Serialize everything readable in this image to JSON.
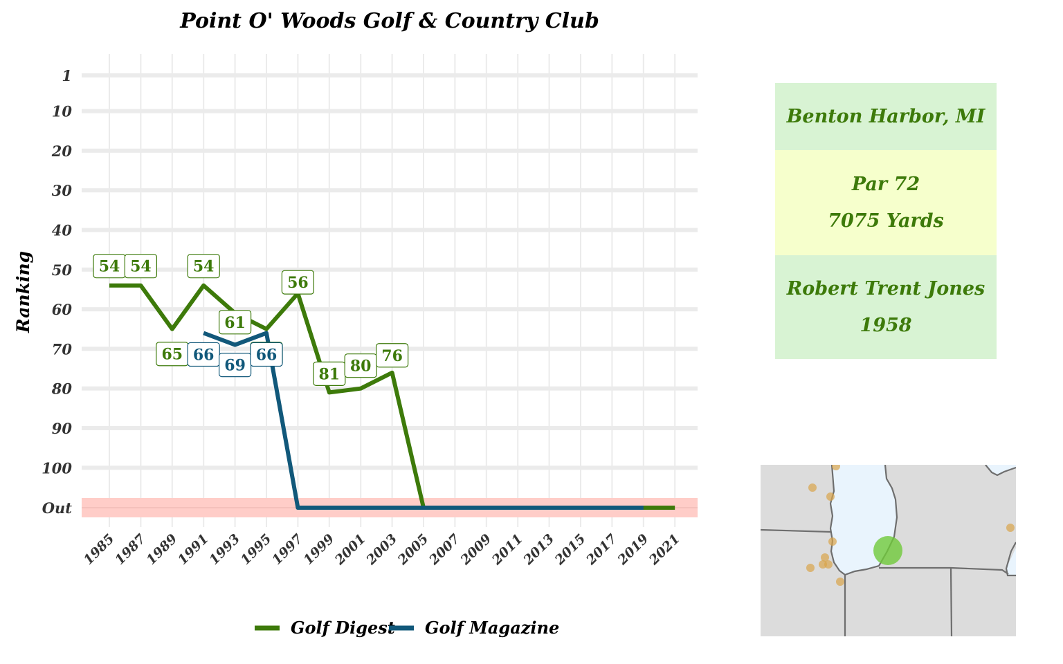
{
  "chart_data": {
    "type": "line",
    "title": "Point O' Woods Golf & Country Club",
    "xlabel": "",
    "ylabel": "Ranking",
    "x_ticks": [
      "1985",
      "1987",
      "1989",
      "1991",
      "1993",
      "1995",
      "1997",
      "1999",
      "2001",
      "2003",
      "2005",
      "2007",
      "2009",
      "2011",
      "2013",
      "2015",
      "2017",
      "2019",
      "2021"
    ],
    "y_ticks": [
      "1",
      "10",
      "20",
      "30",
      "40",
      "50",
      "60",
      "70",
      "80",
      "90",
      "100",
      "Out"
    ],
    "y_reversed": true,
    "out_band_label": "Out",
    "grid": true,
    "legend_position": "bottom",
    "series": [
      {
        "name": "Golf Digest",
        "color": "#3d7a0a",
        "points": [
          {
            "x": 1985,
            "y": 54
          },
          {
            "x": 1987,
            "y": 54
          },
          {
            "x": 1989,
            "y": 65
          },
          {
            "x": 1991,
            "y": 54
          },
          {
            "x": 1993,
            "y": 61
          },
          {
            "x": 1995,
            "y": 65
          },
          {
            "x": 1997,
            "y": 56
          },
          {
            "x": 1999,
            "y": 81
          },
          {
            "x": 2001,
            "y": 80
          },
          {
            "x": 2003,
            "y": 76
          },
          {
            "x": 2005,
            "y": "Out"
          },
          {
            "x": 2021,
            "y": "Out"
          }
        ],
        "labels": [
          {
            "x": 1985,
            "text": "54"
          },
          {
            "x": 1987,
            "text": "54"
          },
          {
            "x": 1989,
            "text": "65"
          },
          {
            "x": 1991,
            "text": "54"
          },
          {
            "x": 1993,
            "text": "61"
          },
          {
            "x": 1995,
            "text": "65"
          },
          {
            "x": 1997,
            "text": "56"
          },
          {
            "x": 1999,
            "text": "81"
          },
          {
            "x": 2001,
            "text": "80"
          },
          {
            "x": 2003,
            "text": "76"
          }
        ]
      },
      {
        "name": "Golf Magazine",
        "color": "#11587a",
        "points": [
          {
            "x": 1991,
            "y": 66
          },
          {
            "x": 1993,
            "y": 69
          },
          {
            "x": 1995,
            "y": 66
          },
          {
            "x": 1997,
            "y": "Out"
          },
          {
            "x": 2019,
            "y": "Out"
          }
        ],
        "labels": [
          {
            "x": 1991,
            "text": "66"
          },
          {
            "x": 1993,
            "text": "69"
          },
          {
            "x": 1995,
            "text": "66"
          }
        ]
      }
    ]
  },
  "info": {
    "location": "Benton Harbor, MI",
    "par": "Par 72",
    "yards": "7075 Yards",
    "architect": "Robert Trent Jones",
    "year": "1958"
  },
  "map": {
    "land_color": "#dcdcdc",
    "water_color": "#e9f4fd",
    "border_color": "#6e6e6e",
    "highlight_color": "#6fc93a",
    "other_course_color": "#d9a44a"
  }
}
